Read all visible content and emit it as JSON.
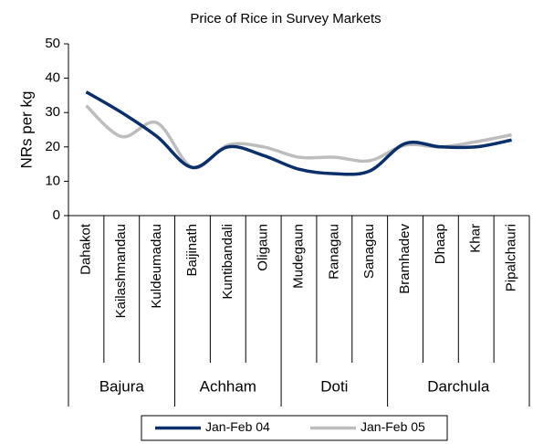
{
  "chart_data": {
    "type": "line",
    "title": "Price of Rice in Survey Markets",
    "y_label": "NRs per kg",
    "groups": [
      {
        "label": "Bajura",
        "categories": [
          "Dahakot",
          "Kailashmandau",
          "Kuldeumadau"
        ]
      },
      {
        "label": "Achham",
        "categories": [
          "Baijinath",
          "Kuntibandali",
          "Oligaun"
        ]
      },
      {
        "label": "Doti",
        "categories": [
          "Mudegaun",
          "Ranagau",
          "Sanagau"
        ]
      },
      {
        "label": "Darchula",
        "categories": [
          "Bramhadev",
          "Dhaap",
          "Khar",
          "Pipalchauri"
        ]
      }
    ],
    "series": [
      {
        "name": "Jan-Feb 04",
        "color": "#0b2f6b",
        "values": [
          36,
          30,
          23,
          14,
          20,
          17.5,
          13.5,
          12.2,
          13,
          21,
          20,
          20,
          22
        ]
      },
      {
        "name": "Jan-Feb 05",
        "color": "#bdbdbd",
        "values": [
          32,
          23,
          27,
          14,
          20.5,
          20,
          17,
          17,
          16,
          20.5,
          20,
          21.5,
          23.5
        ]
      }
    ],
    "ylim": [
      0,
      50
    ],
    "yticks": [
      0,
      10,
      20,
      30,
      40,
      50
    ],
    "grid": false,
    "legend": "bottom"
  }
}
